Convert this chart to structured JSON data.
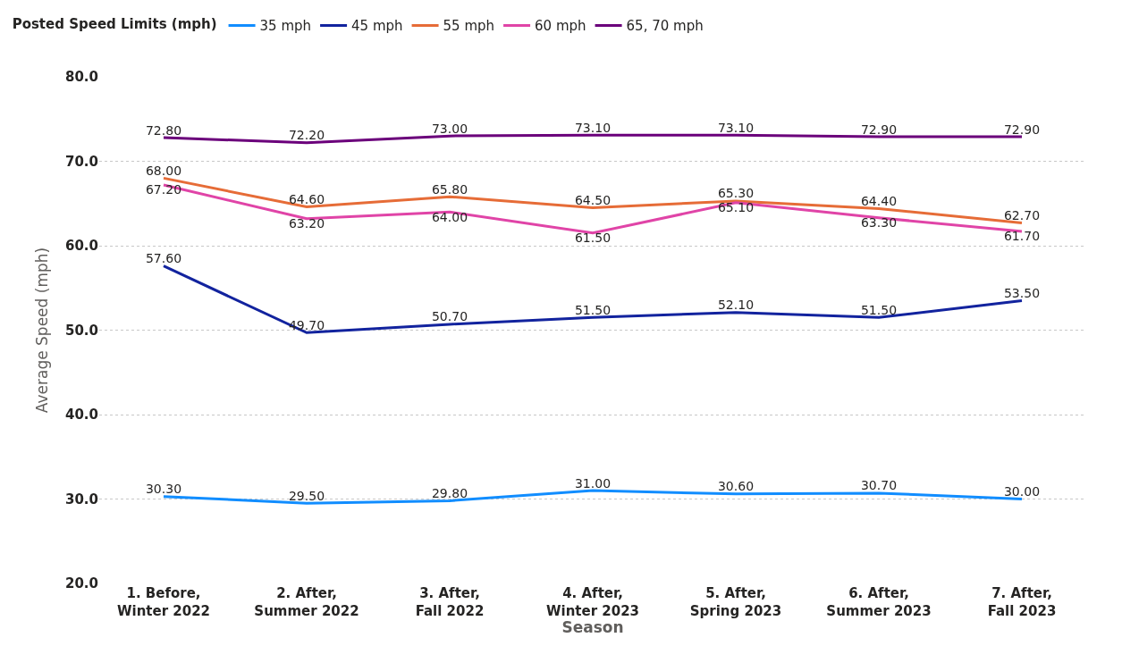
{
  "chart_data": {
    "type": "line",
    "xlabel": "Season",
    "ylabel": "Average Speed (mph)",
    "legend_title": "Posted Speed Limits (mph)",
    "categories": [
      "1. Before, Winter 2022",
      "2. After, Summer 2022",
      "3. After, Fall 2022",
      "4. After, Winter 2023",
      "5. After, Spring 2023",
      "6. After, Summer 2023",
      "7. After, Fall 2023"
    ],
    "series": [
      {
        "name": "35 mph",
        "color": "#118dff",
        "values": [
          30.3,
          29.5,
          29.8,
          31.0,
          30.6,
          30.7,
          30.0
        ],
        "value_labels": [
          "30.30",
          "29.50",
          "29.80",
          "31.00",
          "30.60",
          "30.70",
          "30.00"
        ]
      },
      {
        "name": "45 mph",
        "color": "#12239e",
        "values": [
          57.6,
          49.7,
          50.7,
          51.5,
          52.1,
          51.5,
          53.5
        ],
        "value_labels": [
          "57.60",
          "49.70",
          "50.70",
          "51.50",
          "52.10",
          "51.50",
          "53.50"
        ]
      },
      {
        "name": "55 mph",
        "color": "#e66c37",
        "values": [
          68.0,
          64.6,
          65.8,
          64.5,
          65.3,
          64.4,
          62.7
        ],
        "value_labels": [
          "68.00",
          "64.60",
          "65.80",
          "64.50",
          "65.30",
          "64.40",
          "62.70"
        ]
      },
      {
        "name": "60 mph",
        "color": "#e044a7",
        "values": [
          67.2,
          63.2,
          64.0,
          61.5,
          65.1,
          63.3,
          61.7
        ],
        "value_labels": [
          "67.20",
          "63.20",
          "64.00",
          "61.50",
          "65.10",
          "63.30",
          "61.70"
        ]
      },
      {
        "name": "65, 70 mph",
        "color": "#6b007b",
        "values": [
          72.8,
          72.2,
          73.0,
          73.1,
          73.1,
          72.9,
          72.9
        ],
        "value_labels": [
          "72.80",
          "72.20",
          "73.00",
          "73.10",
          "73.10",
          "72.90",
          "72.90"
        ]
      }
    ],
    "ylim": [
      20,
      80
    ],
    "yticks": [
      {
        "value": 20,
        "label": "20.0"
      },
      {
        "value": 30,
        "label": "30.0"
      },
      {
        "value": 40,
        "label": "40.0"
      },
      {
        "value": 50,
        "label": "50.0"
      },
      {
        "value": 60,
        "label": "60.0"
      },
      {
        "value": 70,
        "label": "70.0"
      },
      {
        "value": 80,
        "label": "80.0"
      }
    ],
    "grid": "y",
    "legend": "top left",
    "marker": "none",
    "line_style": "solid"
  }
}
